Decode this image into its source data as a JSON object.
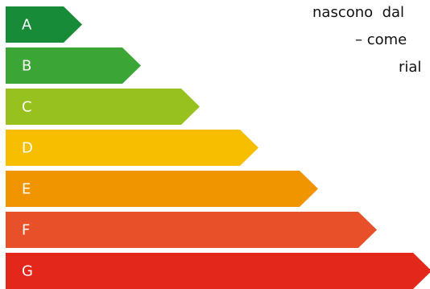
{
  "background_text": [
    "nascono  dal",
    "– come",
    "rial"
  ],
  "rating_scale": [
    {
      "label": "A",
      "color": "#178B37"
    },
    {
      "label": "B",
      "color": "#3BA635"
    },
    {
      "label": "C",
      "color": "#96C11F"
    },
    {
      "label": "D",
      "color": "#F7BE00"
    },
    {
      "label": "E",
      "color": "#F09400"
    },
    {
      "label": "F",
      "color": "#E8502A"
    },
    {
      "label": "G",
      "color": "#E3271A"
    }
  ]
}
